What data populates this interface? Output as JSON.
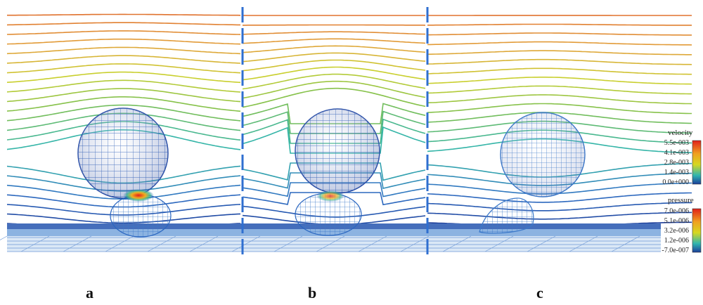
{
  "panels": [
    {
      "label": "a"
    },
    {
      "label": "b"
    },
    {
      "label": "c"
    }
  ],
  "legends": {
    "velocity": {
      "title": "velocity",
      "ticks": [
        "5.5e-003",
        "4.1e-003",
        "2.8e-003",
        "1.4e-003",
        "0.0e+000"
      ],
      "colors": [
        "#e0201a",
        "#f29a1a",
        "#d7d41f",
        "#35b57a",
        "#1c3e9a"
      ]
    },
    "pressure": {
      "title": "pressure",
      "ticks": [
        "7.0e-006",
        "5.1e-006",
        "3.2e-006",
        "1.2e-006",
        "-7.0e-007"
      ],
      "colors": [
        "#e0201a",
        "#f29a1a",
        "#d7d41f",
        "#35b57a",
        "#1c3e9a"
      ]
    }
  }
}
